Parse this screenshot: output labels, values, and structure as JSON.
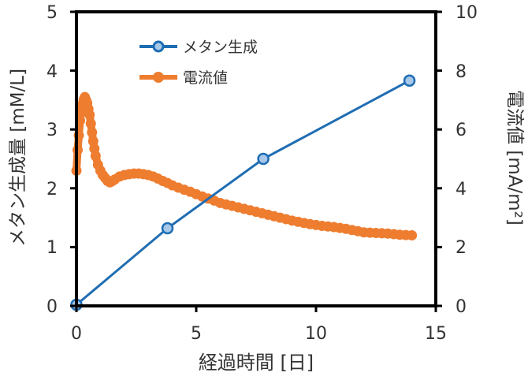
{
  "chart_data": {
    "type": "line",
    "xlabel": "経過時間 [日]",
    "ylabel": "メタン生成量 [mM/L]",
    "y2label": "電流値 [mA/m²]",
    "xlim": [
      0,
      15
    ],
    "ylim": [
      0,
      5
    ],
    "y2lim": [
      0,
      10
    ],
    "xticks": [
      "0",
      "5",
      "10",
      "15"
    ],
    "yticks": [
      "0",
      "1",
      "2",
      "3",
      "4",
      "5"
    ],
    "y2ticks": [
      "0",
      "2",
      "4",
      "6",
      "8",
      "10"
    ],
    "grid": false,
    "legend_position": "top-left",
    "colors": {
      "methane": "#1f6db3",
      "methane_marker": "#a8c8ea",
      "current": "#ee7d30"
    },
    "series": [
      {
        "name": "メタン生成",
        "axis": "left",
        "x": [
          0,
          3.8,
          7.8,
          13.9
        ],
        "y": [
          0.02,
          1.32,
          2.5,
          3.83
        ]
      },
      {
        "name": "電流値",
        "axis": "right",
        "x": [
          0,
          0.05,
          0.1,
          0.15,
          0.2,
          0.25,
          0.3,
          0.35,
          0.4,
          0.45,
          0.5,
          0.55,
          0.6,
          0.65,
          0.7,
          0.75,
          0.8,
          0.9,
          1.0,
          1.1,
          1.2,
          1.3,
          1.4,
          1.5,
          1.6,
          1.8,
          2.0,
          2.2,
          2.4,
          2.6,
          2.8,
          3.0,
          3.2,
          3.4,
          3.6,
          3.8,
          4.0,
          4.25,
          4.5,
          4.75,
          5.0,
          5.25,
          5.5,
          5.75,
          6.0,
          6.25,
          6.5,
          6.75,
          7.0,
          7.25,
          7.5,
          7.75,
          8.0,
          8.25,
          8.5,
          8.75,
          9.0,
          9.25,
          9.5,
          9.75,
          10.0,
          10.25,
          10.5,
          10.75,
          11.0,
          11.25,
          11.5,
          11.75,
          12.0,
          12.25,
          12.5,
          12.75,
          13.0,
          13.25,
          13.5,
          13.75,
          14.0
        ],
        "y": [
          4.6,
          5.3,
          5.8,
          6.3,
          6.6,
          6.85,
          7.0,
          7.1,
          7.0,
          6.9,
          6.7,
          6.5,
          6.2,
          5.9,
          5.6,
          5.35,
          5.1,
          4.8,
          4.6,
          4.45,
          4.35,
          4.25,
          4.2,
          4.25,
          4.3,
          4.4,
          4.45,
          4.48,
          4.5,
          4.5,
          4.48,
          4.45,
          4.4,
          4.33,
          4.25,
          4.18,
          4.1,
          4.02,
          3.95,
          3.88,
          3.8,
          3.72,
          3.65,
          3.58,
          3.5,
          3.45,
          3.4,
          3.35,
          3.3,
          3.25,
          3.2,
          3.15,
          3.1,
          3.05,
          3.0,
          2.95,
          2.9,
          2.86,
          2.82,
          2.78,
          2.75,
          2.72,
          2.7,
          2.68,
          2.65,
          2.62,
          2.58,
          2.54,
          2.5,
          2.49,
          2.48,
          2.47,
          2.46,
          2.44,
          2.42,
          2.41,
          2.4
        ]
      }
    ]
  }
}
